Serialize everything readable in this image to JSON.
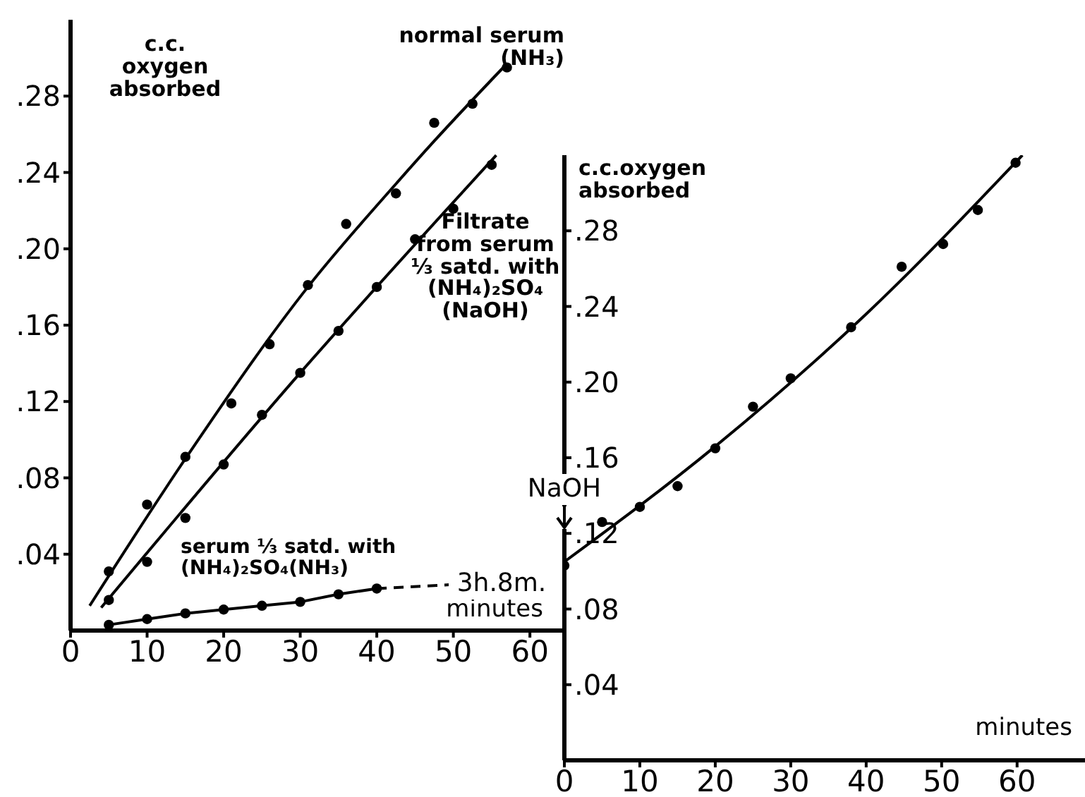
{
  "chart_data": [
    {
      "type": "scatter",
      "xlabel": "minutes",
      "ylabel": "c.c.\noxygen\nabsorbed",
      "xlim": [
        0,
        64.5
      ],
      "ylim": [
        0,
        0.32
      ],
      "xticks": [
        0,
        10,
        20,
        30,
        40,
        50,
        60
      ],
      "yticks": [
        {
          "value": 0.04,
          "label": ".04"
        },
        {
          "value": 0.08,
          "label": ".08"
        },
        {
          "value": 0.12,
          "label": ".12"
        },
        {
          "value": 0.16,
          "label": ".16"
        },
        {
          "value": 0.2,
          "label": ".20"
        },
        {
          "value": 0.24,
          "label": ".24"
        },
        {
          "value": 0.28,
          "label": ".28"
        }
      ],
      "marker": "circle",
      "annotations": [
        "3h.8m."
      ],
      "series": [
        {
          "name": "normal serum\n(NH₃)",
          "type": "scatter",
          "color": "#000000",
          "x": [
            5,
            10,
            15,
            21,
            26,
            31,
            36,
            42.5,
            47.5,
            52.5,
            57
          ],
          "values": [
            0.031,
            0.066,
            0.091,
            0.119,
            0.15,
            0.181,
            0.213,
            0.229,
            0.266,
            0.276,
            0.295
          ]
        },
        {
          "type": "line",
          "marker": "none",
          "color": "#000000",
          "x": [
            2.5,
            15,
            31,
            42.5,
            47.4,
            57
          ],
          "values": [
            0.013,
            0.09,
            0.18,
            0.234,
            0.256,
            0.297
          ]
        },
        {
          "name": "Filtrate\nfrom serum\n⅓ satd. with\n(NH₄)₂SO₄\n(NaOH)",
          "type": "scatter",
          "color": "#000000",
          "x": [
            5,
            10,
            15,
            20,
            25,
            30,
            35,
            40,
            45,
            50,
            55
          ],
          "values": [
            0.016,
            0.036,
            0.059,
            0.087,
            0.113,
            0.135,
            0.157,
            0.18,
            0.205,
            0.221,
            0.244
          ]
        },
        {
          "type": "line",
          "marker": "none",
          "color": "#000000",
          "x": [
            4,
            30,
            55.6
          ],
          "values": [
            0.012,
            0.135,
            0.249
          ]
        },
        {
          "name": "serum ⅓ satd. with\n(NH₄)₂SO₄(NH₃)",
          "type": "line",
          "marker": "circle",
          "color": "#000000",
          "x": [
            5,
            10,
            15,
            20,
            25,
            30,
            35,
            40
          ],
          "values": [
            0.003,
            0.006,
            0.009,
            0.011,
            0.013,
            0.015,
            0.019,
            0.022
          ]
        },
        {
          "type": "line",
          "marker": "none",
          "line_style": "dashed",
          "color": "#000000",
          "x": [
            40,
            49.5
          ],
          "values": [
            0.022,
            0.024
          ]
        }
      ]
    },
    {
      "type": "scatter",
      "xlabel": "minutes",
      "ylabel": "c.c.oxygen\nabsorbed",
      "xlim": [
        0,
        69
      ],
      "ylim": [
        0,
        0.32
      ],
      "xticks": [
        0,
        10,
        20,
        30,
        40,
        50,
        60
      ],
      "yticks": [
        {
          "value": 0.04,
          "label": ".04"
        },
        {
          "value": 0.08,
          "label": ".08"
        },
        {
          "value": 0.12,
          "label": ".12"
        },
        {
          "value": 0.16,
          "label": ".16"
        },
        {
          "value": 0.2,
          "label": ".20"
        },
        {
          "value": 0.24,
          "label": ".24"
        },
        {
          "value": 0.28,
          "label": ".28"
        }
      ],
      "marker": "circle",
      "annotations": [
        "NaOH"
      ],
      "series": [
        {
          "type": "scatter",
          "color": "#000000",
          "x": [
            0,
            5,
            10,
            15,
            20,
            25,
            30,
            38,
            44.7,
            50.2,
            54.8,
            59.8
          ],
          "values": [
            0.103,
            0.126,
            0.134,
            0.145,
            0.165,
            0.187,
            0.202,
            0.229,
            0.261,
            0.273,
            0.291,
            0.316
          ]
        },
        {
          "type": "line",
          "marker": "none",
          "color": "#000000",
          "x": [
            0,
            20,
            40,
            60.7
          ],
          "values": [
            0.105,
            0.166,
            0.236,
            0.32
          ]
        }
      ]
    }
  ]
}
